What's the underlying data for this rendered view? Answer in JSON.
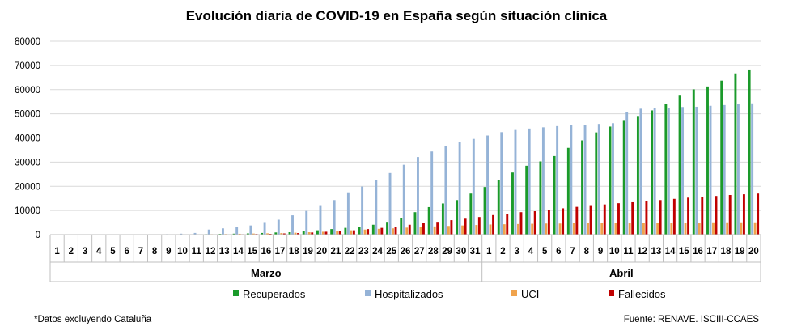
{
  "chart_data": {
    "type": "bar",
    "title": "Evolución diaria de COVID-19 en España según situación clínica",
    "footnote": "*Datos excluyendo Cataluña",
    "source": "Fuente: RENAVE. ISCIII-CCAES",
    "ylim": [
      0,
      80000
    ],
    "yticks": [
      "0",
      "10000",
      "20000",
      "30000",
      "40000",
      "50000",
      "60000",
      "70000",
      "80000"
    ],
    "grid": true,
    "legend_position": "bottom",
    "groups": [
      {
        "label": "Marzo",
        "days": [
          "1",
          "2",
          "3",
          "4",
          "5",
          "6",
          "7",
          "8",
          "9",
          "10",
          "11",
          "12",
          "13",
          "14",
          "15",
          "16",
          "17",
          "18",
          "19",
          "20",
          "21",
          "22",
          "23",
          "24",
          "25",
          "26",
          "27",
          "28",
          "29",
          "30",
          "31"
        ]
      },
      {
        "label": "Abril",
        "days": [
          "1",
          "2",
          "3",
          "4",
          "5",
          "6",
          "7",
          "8",
          "9",
          "10",
          "11",
          "12",
          "13",
          "14",
          "15",
          "16",
          "17",
          "18",
          "19",
          "20"
        ]
      }
    ],
    "series": [
      {
        "name": "Recuperados",
        "color": "#1a9a2a",
        "values": [
          0,
          0,
          0,
          0,
          0,
          0,
          0,
          0,
          30,
          80,
          150,
          200,
          300,
          400,
          500,
          700,
          900,
          1000,
          1400,
          1800,
          2300,
          2800,
          3300,
          4100,
          5300,
          7000,
          9300,
          11400,
          12900,
          14300,
          17000,
          19700,
          22600,
          25700,
          28500,
          30300,
          32500,
          35900,
          39000,
          42300,
          44700,
          47400,
          49100,
          51400,
          54000,
          57500,
          60100,
          61300,
          63700,
          66700,
          68300
        ]
      },
      {
        "name": "Hospitalizados",
        "color": "#95b3d7",
        "values": [
          0,
          0,
          0,
          0,
          0,
          0,
          0,
          100,
          200,
          400,
          700,
          2100,
          2600,
          3300,
          3800,
          5200,
          6200,
          8000,
          9800,
          12200,
          14300,
          17500,
          19900,
          22500,
          25500,
          28900,
          32100,
          34400,
          36500,
          38200,
          39600,
          41000,
          42400,
          43300,
          43900,
          44400,
          44900,
          45200,
          45500,
          45800,
          46100,
          50800,
          52100,
          52400,
          52500,
          52800,
          52900,
          53300,
          53600,
          54000,
          54300
        ]
      },
      {
        "name": "UCI",
        "color": "#f0a34d",
        "values": [
          0,
          0,
          0,
          0,
          0,
          0,
          0,
          10,
          30,
          60,
          120,
          200,
          250,
          350,
          450,
          550,
          650,
          800,
          1000,
          1200,
          1500,
          1800,
          2100,
          2400,
          2600,
          2900,
          3200,
          3400,
          3600,
          3800,
          4000,
          4200,
          4300,
          4400,
          4500,
          4600,
          4600,
          4700,
          4700,
          4800,
          4800,
          4900,
          4900,
          5000,
          5000,
          5000,
          5000,
          5100,
          5100,
          5100,
          5100
        ]
      },
      {
        "name": "Fallecidos",
        "color": "#c00000",
        "values": [
          0,
          0,
          0,
          0,
          0,
          0,
          0,
          0,
          10,
          30,
          50,
          100,
          130,
          190,
          270,
          330,
          500,
          650,
          900,
          1200,
          1500,
          1800,
          2300,
          2800,
          3300,
          4100,
          4700,
          5300,
          6000,
          6600,
          7300,
          8100,
          8700,
          9300,
          9700,
          10300,
          10900,
          11500,
          12200,
          12500,
          13000,
          13400,
          13800,
          14300,
          14800,
          15300,
          15700,
          16000,
          16400,
          16700,
          17000
        ]
      }
    ]
  }
}
